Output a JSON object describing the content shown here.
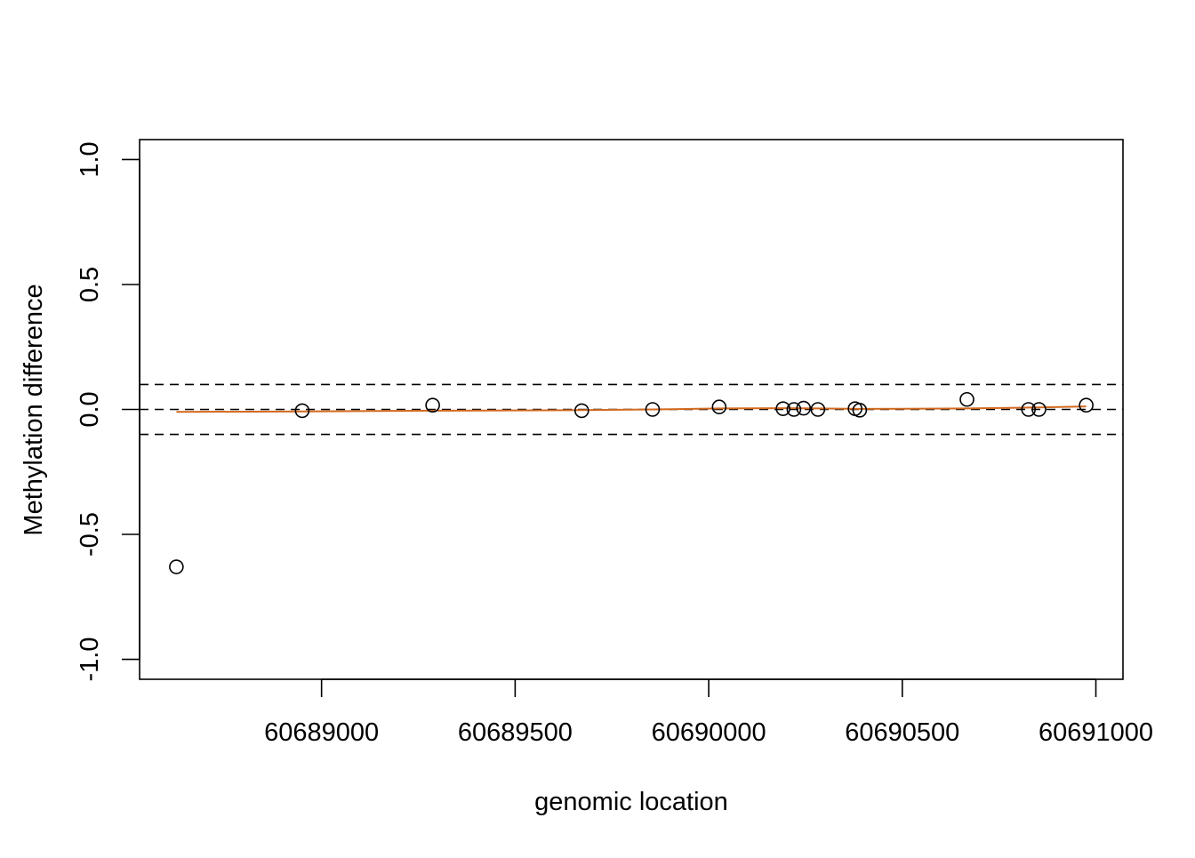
{
  "chart_data": {
    "type": "scatter",
    "title": "",
    "xlabel": "genomic location",
    "ylabel": "Methylation difference",
    "xlim": [
      60688530,
      60691070
    ],
    "ylim": [
      -1.08,
      1.08
    ],
    "x_ticks": [
      60689000,
      60689500,
      60690000,
      60690500,
      60691000
    ],
    "x_tick_labels": [
      "60689000",
      "60689500",
      "60690000",
      "60690500",
      "60691000"
    ],
    "y_ticks": [
      -1.0,
      -0.5,
      0.0,
      0.5,
      1.0
    ],
    "y_tick_labels": [
      "-1.0",
      "-0.5",
      "0.0",
      "0.5",
      "1.0"
    ],
    "grid": false,
    "reference_lines": [
      0.1,
      0.0,
      -0.1
    ],
    "point_color": "#000000",
    "smooth_line_color": "#d2691e",
    "points": [
      {
        "x": 60688625,
        "y": -0.63
      },
      {
        "x": 60688950,
        "y": -0.005
      },
      {
        "x": 60689287,
        "y": 0.017
      },
      {
        "x": 60689672,
        "y": -0.005
      },
      {
        "x": 60689855,
        "y": 0.0
      },
      {
        "x": 60690027,
        "y": 0.01
      },
      {
        "x": 60690192,
        "y": 0.003
      },
      {
        "x": 60690220,
        "y": 0.0
      },
      {
        "x": 60690245,
        "y": 0.005
      },
      {
        "x": 60690282,
        "y": 0.0
      },
      {
        "x": 60690378,
        "y": 0.003
      },
      {
        "x": 60690390,
        "y": -0.003
      },
      {
        "x": 60690667,
        "y": 0.04
      },
      {
        "x": 60690826,
        "y": 0.0
      },
      {
        "x": 60690853,
        "y": 0.0
      },
      {
        "x": 60690975,
        "y": 0.017
      }
    ],
    "smooth_line": [
      {
        "x": 60688625,
        "y": -0.01
      },
      {
        "x": 60688950,
        "y": -0.008
      },
      {
        "x": 60689287,
        "y": -0.005
      },
      {
        "x": 60689672,
        "y": -0.003
      },
      {
        "x": 60689855,
        "y": 0.0
      },
      {
        "x": 60690027,
        "y": 0.004
      },
      {
        "x": 60690192,
        "y": 0.005
      },
      {
        "x": 60690282,
        "y": 0.004
      },
      {
        "x": 60690390,
        "y": 0.002
      },
      {
        "x": 60690667,
        "y": 0.004
      },
      {
        "x": 60690853,
        "y": 0.008
      },
      {
        "x": 60690975,
        "y": 0.012
      }
    ]
  }
}
